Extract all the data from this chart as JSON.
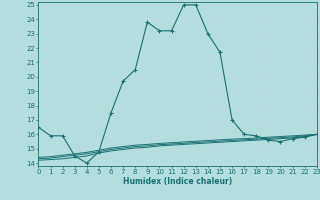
{
  "xlabel": "Humidex (Indice chaleur)",
  "background_color": "#b2dede",
  "line_color": "#1a7070",
  "x_main": [
    0,
    1,
    2,
    3,
    4,
    5,
    6,
    7,
    8,
    9,
    10,
    11,
    12,
    13,
    14,
    15,
    16,
    17,
    18,
    19,
    20,
    21,
    22,
    23
  ],
  "y_main": [
    16.5,
    15.9,
    15.9,
    14.5,
    14.0,
    14.8,
    17.5,
    19.7,
    20.5,
    23.8,
    23.2,
    23.2,
    25.0,
    25.0,
    23.0,
    21.7,
    17.0,
    16.0,
    15.9,
    15.6,
    15.5,
    15.7,
    15.8,
    16.0
  ],
  "y_flat1": [
    14.2,
    14.25,
    14.3,
    14.4,
    14.5,
    14.7,
    14.85,
    14.95,
    15.05,
    15.1,
    15.2,
    15.25,
    15.3,
    15.35,
    15.4,
    15.45,
    15.5,
    15.55,
    15.6,
    15.65,
    15.7,
    15.75,
    15.85,
    16.0
  ],
  "y_flat2": [
    14.3,
    14.35,
    14.45,
    14.55,
    14.65,
    14.8,
    14.95,
    15.05,
    15.15,
    15.2,
    15.28,
    15.33,
    15.38,
    15.43,
    15.48,
    15.53,
    15.58,
    15.62,
    15.67,
    15.72,
    15.77,
    15.82,
    15.9,
    16.0
  ],
  "y_flat3": [
    14.4,
    14.45,
    14.55,
    14.65,
    14.75,
    14.9,
    15.05,
    15.15,
    15.25,
    15.3,
    15.37,
    15.42,
    15.47,
    15.52,
    15.57,
    15.62,
    15.67,
    15.7,
    15.75,
    15.8,
    15.85,
    15.9,
    15.95,
    16.0
  ],
  "xlim": [
    0,
    23
  ],
  "ylim": [
    13.8,
    25.2
  ],
  "yticks": [
    14,
    15,
    16,
    17,
    18,
    19,
    20,
    21,
    22,
    23,
    24,
    25
  ],
  "xticks": [
    0,
    1,
    2,
    3,
    4,
    5,
    6,
    7,
    8,
    9,
    10,
    11,
    12,
    13,
    14,
    15,
    16,
    17,
    18,
    19,
    20,
    21,
    22,
    23
  ],
  "tick_fontsize": 5.0,
  "xlabel_fontsize": 5.5
}
